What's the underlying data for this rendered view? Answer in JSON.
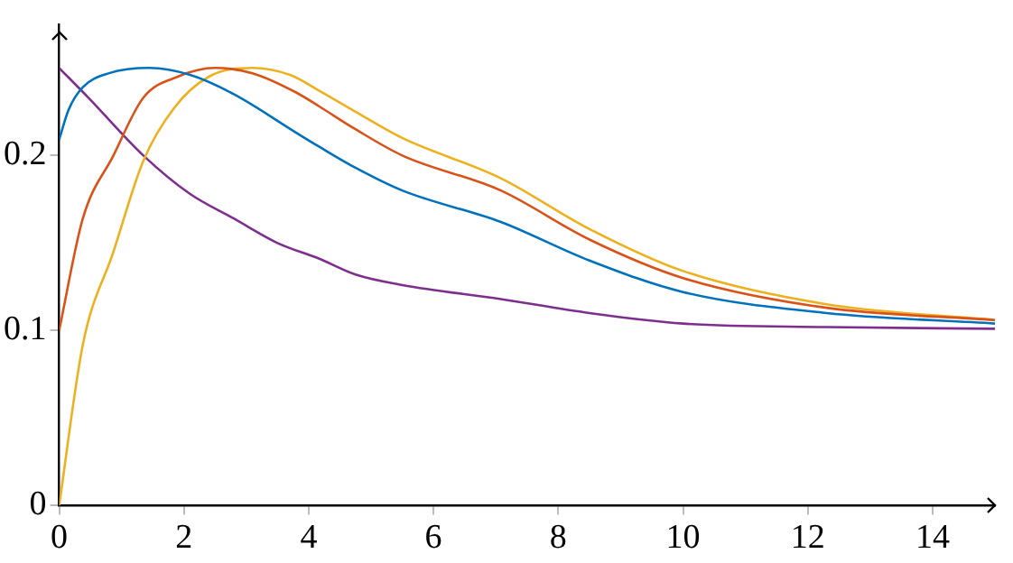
{
  "chart_data": {
    "type": "line",
    "xlim": [
      0,
      15
    ],
    "ylim": [
      0,
      0.275
    ],
    "xticks": [
      0,
      2,
      4,
      6,
      8,
      10,
      12,
      14
    ],
    "yticks": [
      0,
      0.1,
      0.2
    ],
    "grid": false,
    "legend": false,
    "marker": "none",
    "line_style": "solid",
    "series": [
      {
        "color": "#0072bd",
        "x": [
          0,
          0.15,
          0.38,
          0.8,
          1.45,
          2.1,
          2.8,
          3.8,
          4.17,
          4.75,
          5.5,
          7.08,
          8.5,
          10,
          12.3,
          15
        ],
        "values": [
          0.209,
          0.226,
          0.239,
          0.247,
          0.25,
          0.246,
          0.235,
          0.213,
          0.205,
          0.193,
          0.18,
          0.162,
          0.14,
          0.122,
          0.11,
          0.104
        ]
      },
      {
        "color": "#d95319",
        "x": [
          0,
          0.38,
          0.87,
          1.35,
          1.9,
          2.5,
          3.1,
          3.8,
          4.17,
          4.75,
          5.5,
          7.08,
          8.5,
          10,
          12.3,
          15
        ],
        "values": [
          0.1,
          0.164,
          0.2,
          0.233,
          0.245,
          0.25,
          0.247,
          0.236,
          0.228,
          0.215,
          0.2,
          0.18,
          0.152,
          0.13,
          0.113,
          0.106
        ]
      },
      {
        "color": "#edb120",
        "x": [
          0,
          0.38,
          0.87,
          1.35,
          1.84,
          2.4,
          3.1,
          3.7,
          4.17,
          4.75,
          5.5,
          7.08,
          8.5,
          10,
          12.3,
          15
        ],
        "values": [
          0,
          0.092,
          0.145,
          0.197,
          0.227,
          0.245,
          0.25,
          0.246,
          0.237,
          0.225,
          0.21,
          0.187,
          0.158,
          0.134,
          0.115,
          0.106
        ]
      },
      {
        "color": "#7e2f8e",
        "x": [
          0,
          0.47,
          1.35,
          2.1,
          2.8,
          3.5,
          4.17,
          4.75,
          5.5,
          7.08,
          8.5,
          10,
          12.3,
          15
        ],
        "values": [
          0.25,
          0.233,
          0.2,
          0.178,
          0.164,
          0.15,
          0.141,
          0.132,
          0.126,
          0.118,
          0.11,
          0.104,
          0.102,
          0.101
        ]
      }
    ]
  }
}
